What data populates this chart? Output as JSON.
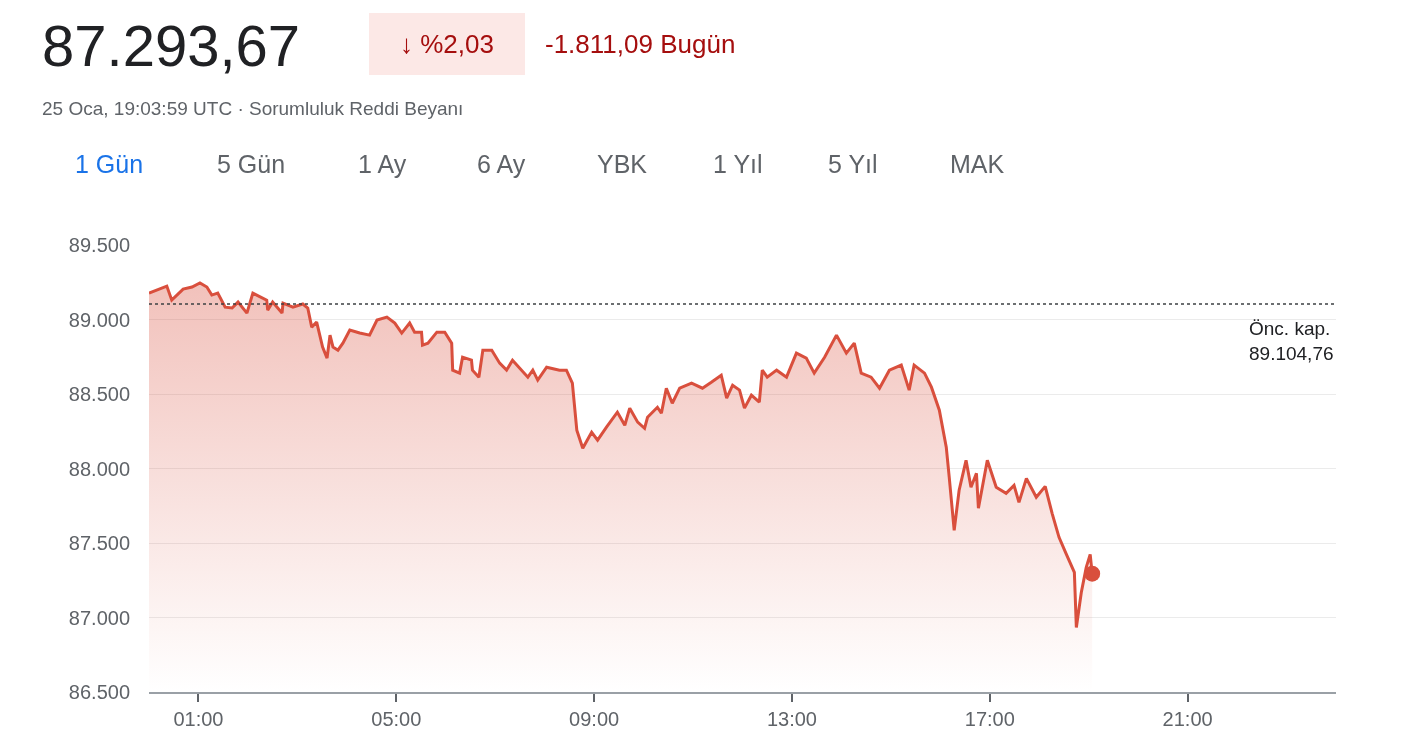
{
  "chart_data": {
    "type": "area",
    "title": "87.293,67",
    "subtitle": "25 Oca, 19:03:59 UTC · Sorumluluk Reddi Beyanı",
    "annotations": [
      "↓ %2,03",
      "-1.811,09 Bugün",
      "1 Gün",
      "5 Gün",
      "1 Ay",
      "6 Ay",
      "YBK",
      "1 Yıl",
      "5 Yıl",
      "MAK"
    ],
    "series": [
      {
        "color": "#d94f3d",
        "x": [
          0,
          0.36,
          0.46,
          0.69,
          0.87,
          1.03,
          1.17,
          1.27,
          1.39,
          1.54,
          1.68,
          1.8,
          1.98,
          2.1,
          2.38,
          2.4,
          2.5,
          2.69,
          2.71,
          2.91,
          3.11,
          3.21,
          3.29,
          3.39,
          3.51,
          3.6,
          3.66,
          3.72,
          3.82,
          3.92,
          4.06,
          4.26,
          4.46,
          4.61,
          4.81,
          4.97,
          5.11,
          5.27,
          5.37,
          5.51,
          5.53,
          5.64,
          5.82,
          5.98,
          6.12,
          6.14,
          6.28,
          6.34,
          6.52,
          6.54,
          6.67,
          6.75,
          6.93,
          7.09,
          7.23,
          7.35,
          7.66,
          7.76,
          7.86,
          8.04,
          8.3,
          8.44,
          8.56,
          8.65,
          8.77,
          8.95,
          9.07,
          9.25,
          9.47,
          9.62,
          9.72,
          9.88,
          10.02,
          10.08,
          10.28,
          10.36,
          10.46,
          10.58,
          10.73,
          10.97,
          11.19,
          11.37,
          11.57,
          11.68,
          11.8,
          11.94,
          12.04,
          12.18,
          12.34,
          12.4,
          12.5,
          12.69,
          12.89,
          13.09,
          13.29,
          13.45,
          13.66,
          13.9,
          14.1,
          14.26,
          14.4,
          14.6,
          14.77,
          14.97,
          15.21,
          15.37,
          15.47,
          15.68,
          15.82,
          15.98,
          16.12,
          16.18,
          16.28,
          16.38,
          16.52,
          16.62,
          16.73,
          16.77,
          16.95,
          17.13,
          17.33,
          17.49,
          17.59,
          17.74,
          17.94,
          18.12,
          18.26,
          18.4,
          18.54,
          18.71,
          18.75,
          18.85,
          18.95,
          19.03,
          19.07
        ],
        "values": [
          89177,
          89224,
          89130,
          89204,
          89218,
          89245,
          89218,
          89164,
          89177,
          89083,
          89077,
          89117,
          89043,
          89177,
          89130,
          89063,
          89117,
          89043,
          89110,
          89083,
          89104,
          89077,
          88949,
          88983,
          88815,
          88741,
          88895,
          88815,
          88794,
          88841,
          88929,
          88909,
          88895,
          88996,
          89016,
          88976,
          88909,
          88976,
          88915,
          88915,
          88828,
          88841,
          88915,
          88915,
          88841,
          88660,
          88640,
          88747,
          88727,
          88660,
          88613,
          88794,
          88794,
          88707,
          88660,
          88727,
          88613,
          88660,
          88593,
          88680,
          88660,
          88660,
          88573,
          88257,
          88136,
          88243,
          88190,
          88277,
          88378,
          88290,
          88405,
          88311,
          88270,
          88344,
          88411,
          88371,
          88539,
          88438,
          88539,
          88573,
          88539,
          88579,
          88626,
          88472,
          88559,
          88526,
          88405,
          88492,
          88445,
          88660,
          88613,
          88660,
          88613,
          88774,
          88741,
          88640,
          88747,
          88895,
          88774,
          88841,
          88640,
          88613,
          88539,
          88660,
          88694,
          88526,
          88694,
          88640,
          88546,
          88391,
          88143,
          87941,
          87585,
          87854,
          88055,
          87874,
          87968,
          87733,
          88055,
          87874,
          87833,
          87887,
          87773,
          87934,
          87807,
          87880,
          87699,
          87538,
          87430,
          87303,
          86933,
          87168,
          87336,
          87424,
          87294
        ]
      },
      {
        "type": "scatter",
        "color": "#d94f3d",
        "marker": "circle",
        "x": [
          19.07
        ],
        "values": [
          87294
        ]
      }
    ],
    "xlim": [
      0,
      24
    ],
    "ylim": [
      86500,
      89500
    ],
    "xticks": [
      {
        "value": 1,
        "label": "01:00"
      },
      {
        "value": 5,
        "label": "05:00"
      },
      {
        "value": 9,
        "label": "09:00"
      },
      {
        "value": 13,
        "label": "13:00"
      },
      {
        "value": 17,
        "label": "17:00"
      },
      {
        "value": 21,
        "label": "21:00"
      }
    ],
    "yticks": [
      {
        "value": 86500,
        "label": "86.500"
      },
      {
        "value": 87000,
        "label": "87.000"
      },
      {
        "value": 87500,
        "label": "87.500"
      },
      {
        "value": 88000,
        "label": "88.000"
      },
      {
        "value": 88500,
        "label": "88.500"
      },
      {
        "value": 89000,
        "label": "89.000"
      },
      {
        "value": 89500,
        "label": "89.500"
      }
    ],
    "grid": "y",
    "legend": false,
    "marker": "none",
    "line_style": "solid",
    "ref_lines": [
      {
        "axis": "y",
        "value": 89104.76,
        "label": "Önc. kap.\n89.104,76",
        "color": "#3c4043",
        "line_style": "dotted"
      }
    ]
  }
}
